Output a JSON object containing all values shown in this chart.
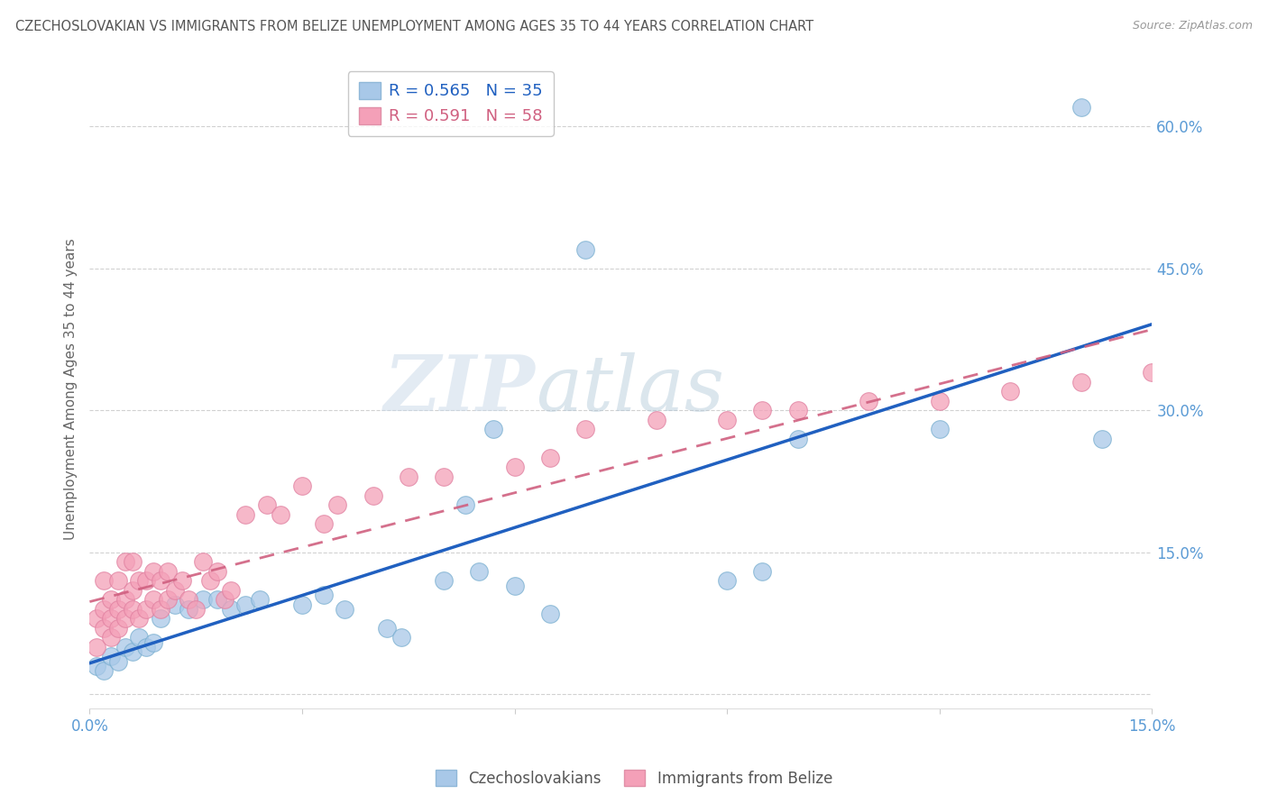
{
  "title": "CZECHOSLOVAKIAN VS IMMIGRANTS FROM BELIZE UNEMPLOYMENT AMONG AGES 35 TO 44 YEARS CORRELATION CHART",
  "source": "Source: ZipAtlas.com",
  "ylabel": "Unemployment Among Ages 35 to 44 years",
  "xlim": [
    0.0,
    0.15
  ],
  "ylim": [
    -0.015,
    0.66
  ],
  "yticks": [
    0.0,
    0.15,
    0.3,
    0.45,
    0.6
  ],
  "ytick_labels": [
    "",
    "15.0%",
    "30.0%",
    "45.0%",
    "60.0%"
  ],
  "xticks": [
    0.0,
    0.03,
    0.06,
    0.09,
    0.12,
    0.15
  ],
  "xtick_labels": [
    "0.0%",
    "",
    "",
    "",
    "",
    "15.0%"
  ],
  "legend_R1": "R = 0.565",
  "legend_N1": "N = 35",
  "legend_R2": "R = 0.591",
  "legend_N2": "N = 58",
  "blue_color": "#a8c8e8",
  "pink_color": "#f4a0b8",
  "blue_line_color": "#2060c0",
  "pink_line_color": "#d06080",
  "axis_color": "#5b9bd5",
  "grid_color": "#cccccc",
  "title_color": "#555555",
  "watermark": "ZIPatlas",
  "czech_x": [
    0.001,
    0.002,
    0.003,
    0.004,
    0.005,
    0.006,
    0.007,
    0.008,
    0.009,
    0.01,
    0.012,
    0.014,
    0.016,
    0.018,
    0.02,
    0.022,
    0.024,
    0.03,
    0.033,
    0.036,
    0.042,
    0.044,
    0.05,
    0.055,
    0.06,
    0.053,
    0.057,
    0.065,
    0.07,
    0.09,
    0.095,
    0.1,
    0.12,
    0.14,
    0.143
  ],
  "czech_y": [
    0.03,
    0.025,
    0.04,
    0.035,
    0.05,
    0.045,
    0.06,
    0.05,
    0.055,
    0.08,
    0.095,
    0.09,
    0.1,
    0.1,
    0.09,
    0.095,
    0.1,
    0.095,
    0.105,
    0.09,
    0.07,
    0.06,
    0.12,
    0.13,
    0.115,
    0.2,
    0.28,
    0.085,
    0.47,
    0.12,
    0.13,
    0.27,
    0.28,
    0.62,
    0.27
  ],
  "belize_x": [
    0.001,
    0.001,
    0.002,
    0.002,
    0.002,
    0.003,
    0.003,
    0.003,
    0.004,
    0.004,
    0.004,
    0.005,
    0.005,
    0.005,
    0.006,
    0.006,
    0.006,
    0.007,
    0.007,
    0.008,
    0.008,
    0.009,
    0.009,
    0.01,
    0.01,
    0.011,
    0.011,
    0.012,
    0.013,
    0.014,
    0.015,
    0.016,
    0.017,
    0.018,
    0.019,
    0.02,
    0.022,
    0.025,
    0.027,
    0.03,
    0.033,
    0.035,
    0.04,
    0.045,
    0.05,
    0.06,
    0.065,
    0.07,
    0.08,
    0.09,
    0.095,
    0.1,
    0.11,
    0.12,
    0.13,
    0.14,
    0.15,
    0.155
  ],
  "belize_y": [
    0.05,
    0.08,
    0.07,
    0.09,
    0.12,
    0.06,
    0.08,
    0.1,
    0.07,
    0.09,
    0.12,
    0.08,
    0.1,
    0.14,
    0.09,
    0.11,
    0.14,
    0.08,
    0.12,
    0.09,
    0.12,
    0.1,
    0.13,
    0.09,
    0.12,
    0.1,
    0.13,
    0.11,
    0.12,
    0.1,
    0.09,
    0.14,
    0.12,
    0.13,
    0.1,
    0.11,
    0.19,
    0.2,
    0.19,
    0.22,
    0.18,
    0.2,
    0.21,
    0.23,
    0.23,
    0.24,
    0.25,
    0.28,
    0.29,
    0.29,
    0.3,
    0.3,
    0.31,
    0.31,
    0.32,
    0.33,
    0.34,
    0.355
  ]
}
